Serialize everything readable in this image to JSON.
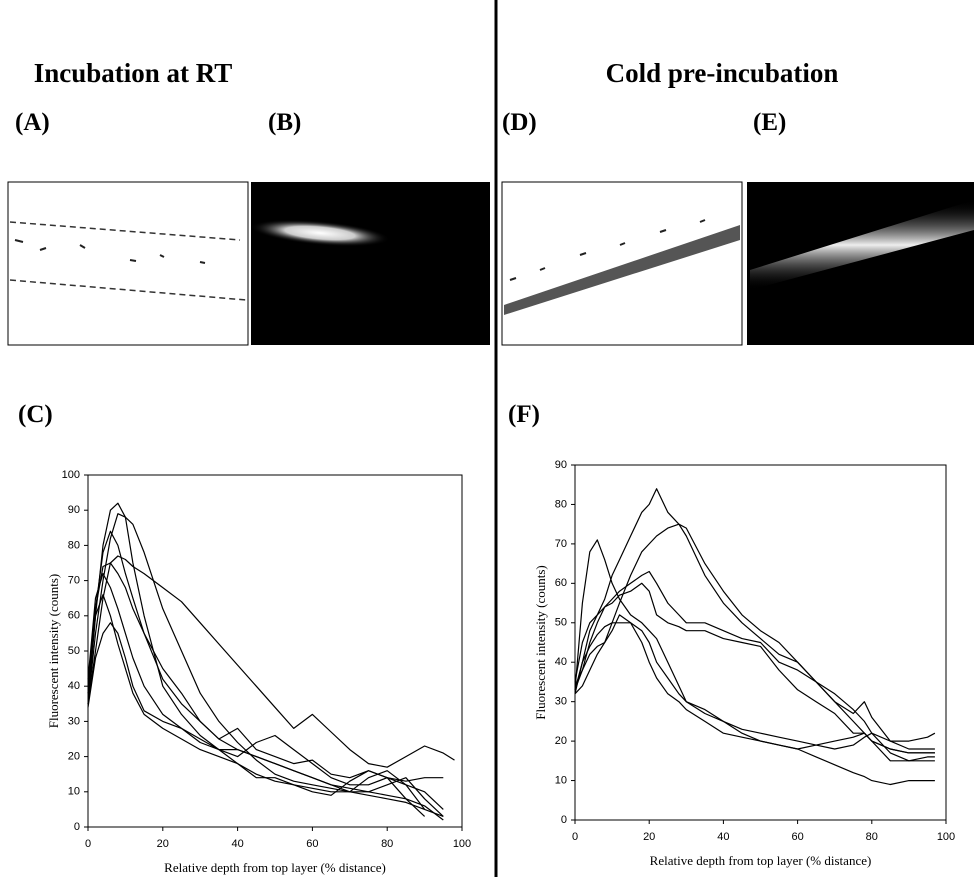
{
  "headings": [
    "Incubation at RT",
    "Cold pre-incubation"
  ],
  "panel_labels": [
    "(A)",
    "(B)",
    "(C)",
    "(D)",
    "(E)",
    "(F)"
  ],
  "chart_data": [
    {
      "type": "line",
      "y_label": "Fluorescent intensity (counts)",
      "x_label": "Relative depth from top layer (% distance)",
      "xlim": [
        0,
        100
      ],
      "xticks": [
        0,
        20,
        40,
        60,
        80,
        100
      ],
      "ylim": [
        0,
        100
      ],
      "yticks": [
        0,
        10,
        20,
        30,
        40,
        50,
        60,
        70,
        80,
        90,
        100
      ],
      "x": [
        0,
        2,
        4,
        6,
        8,
        10,
        12,
        15,
        20,
        25,
        30,
        35,
        40,
        45,
        50,
        55,
        60,
        65,
        70,
        75,
        80,
        85,
        90,
        95,
        98
      ],
      "series": [
        {
          "color": "#000000",
          "values": [
            35,
            60,
            80,
            90,
            92,
            88,
            75,
            60,
            40,
            32,
            26,
            22,
            18,
            15,
            13,
            12,
            11,
            10,
            10,
            9,
            8,
            7,
            5,
            3,
            null
          ]
        },
        {
          "color": "#000000",
          "values": [
            35,
            55,
            70,
            82,
            89,
            88,
            86,
            78,
            62,
            50,
            38,
            30,
            24,
            19,
            15,
            13,
            12,
            11,
            10,
            10,
            12,
            14,
            8,
            3,
            null
          ]
        },
        {
          "color": "#000000",
          "values": [
            38,
            62,
            78,
            84,
            80,
            72,
            65,
            55,
            42,
            35,
            30,
            25,
            22,
            20,
            18,
            16,
            14,
            12,
            11,
            10,
            9,
            8,
            6,
            2,
            null
          ]
        },
        {
          "color": "#000000",
          "values": [
            35,
            50,
            65,
            75,
            77,
            76,
            74,
            72,
            68,
            64,
            58,
            52,
            46,
            40,
            34,
            28,
            32,
            27,
            22,
            18,
            17,
            20,
            23,
            21,
            19
          ]
        },
        {
          "color": "#000000",
          "values": [
            40,
            62,
            74,
            75,
            72,
            68,
            62,
            55,
            45,
            38,
            30,
            25,
            28,
            22,
            20,
            18,
            19,
            15,
            14,
            16,
            14,
            12,
            10,
            5,
            null
          ]
        },
        {
          "color": "#000000",
          "values": [
            42,
            65,
            72,
            68,
            62,
            55,
            48,
            40,
            32,
            28,
            24,
            22,
            22,
            20,
            18,
            16,
            14,
            12,
            10,
            14,
            16,
            12,
            5,
            null,
            null
          ]
        },
        {
          "color": "#000000",
          "values": [
            34,
            48,
            55,
            58,
            55,
            48,
            40,
            33,
            30,
            28,
            25,
            22,
            20,
            24,
            26,
            22,
            18,
            14,
            12,
            12,
            14,
            13,
            14,
            14,
            null
          ]
        },
        {
          "color": "#000000",
          "values": [
            38,
            60,
            66,
            60,
            52,
            45,
            38,
            32,
            28,
            25,
            22,
            20,
            18,
            14,
            14,
            12,
            10,
            9,
            13,
            16,
            14,
            8,
            3,
            null,
            null
          ]
        }
      ]
    },
    {
      "type": "line",
      "y_label": "Fluorescent intensity (counts)",
      "x_label": "Relative depth from top layer (% distance)",
      "xlim": [
        0,
        100
      ],
      "xticks": [
        0,
        20,
        40,
        60,
        80,
        100
      ],
      "ylim": [
        0,
        90
      ],
      "yticks": [
        0,
        10,
        20,
        30,
        40,
        50,
        60,
        70,
        80,
        90
      ],
      "x": [
        0,
        2,
        4,
        6,
        8,
        10,
        12,
        15,
        18,
        20,
        22,
        25,
        28,
        30,
        35,
        40,
        45,
        50,
        55,
        60,
        65,
        70,
        75,
        78,
        80,
        85,
        90,
        95,
        97
      ],
      "series": [
        {
          "color": "#000000",
          "values": [
            33,
            55,
            68,
            71,
            66,
            60,
            56,
            52,
            50,
            48,
            46,
            40,
            34,
            30,
            28,
            25,
            22,
            20,
            19,
            18,
            16,
            14,
            12,
            11,
            10,
            9,
            10,
            10,
            10
          ]
        },
        {
          "color": "#000000",
          "values": [
            33,
            40,
            48,
            52,
            56,
            62,
            66,
            72,
            78,
            80,
            84,
            78,
            75,
            72,
            62,
            55,
            50,
            46,
            42,
            40,
            35,
            32,
            28,
            25,
            22,
            20,
            20,
            21,
            22
          ]
        },
        {
          "color": "#000000",
          "values": [
            32,
            34,
            38,
            42,
            45,
            50,
            55,
            62,
            68,
            70,
            72,
            74,
            75,
            74,
            65,
            58,
            52,
            48,
            45,
            40,
            35,
            30,
            27,
            30,
            26,
            20,
            18,
            18,
            18
          ]
        },
        {
          "color": "#000000",
          "values": [
            33,
            38,
            45,
            50,
            54,
            56,
            58,
            60,
            62,
            63,
            60,
            55,
            52,
            50,
            50,
            48,
            46,
            45,
            40,
            38,
            35,
            30,
            25,
            22,
            20,
            18,
            17,
            17,
            17
          ]
        },
        {
          "color": "#000000",
          "values": [
            35,
            45,
            50,
            52,
            54,
            55,
            57,
            58,
            60,
            58,
            52,
            50,
            49,
            48,
            48,
            46,
            45,
            44,
            38,
            33,
            30,
            27,
            22,
            22,
            20,
            18,
            17,
            17,
            17
          ]
        },
        {
          "color": "#000000",
          "values": [
            32,
            40,
            44,
            47,
            49,
            50,
            50,
            50,
            48,
            45,
            40,
            36,
            32,
            30,
            27,
            25,
            23,
            22,
            21,
            20,
            19,
            18,
            19,
            21,
            22,
            17,
            15,
            15,
            15
          ]
        },
        {
          "color": "#000000",
          "values": [
            34,
            38,
            42,
            44,
            45,
            48,
            52,
            50,
            45,
            40,
            36,
            32,
            30,
            28,
            25,
            22,
            21,
            20,
            19,
            18,
            19,
            20,
            21,
            22,
            20,
            15,
            15,
            16,
            16
          ]
        }
      ]
    }
  ]
}
